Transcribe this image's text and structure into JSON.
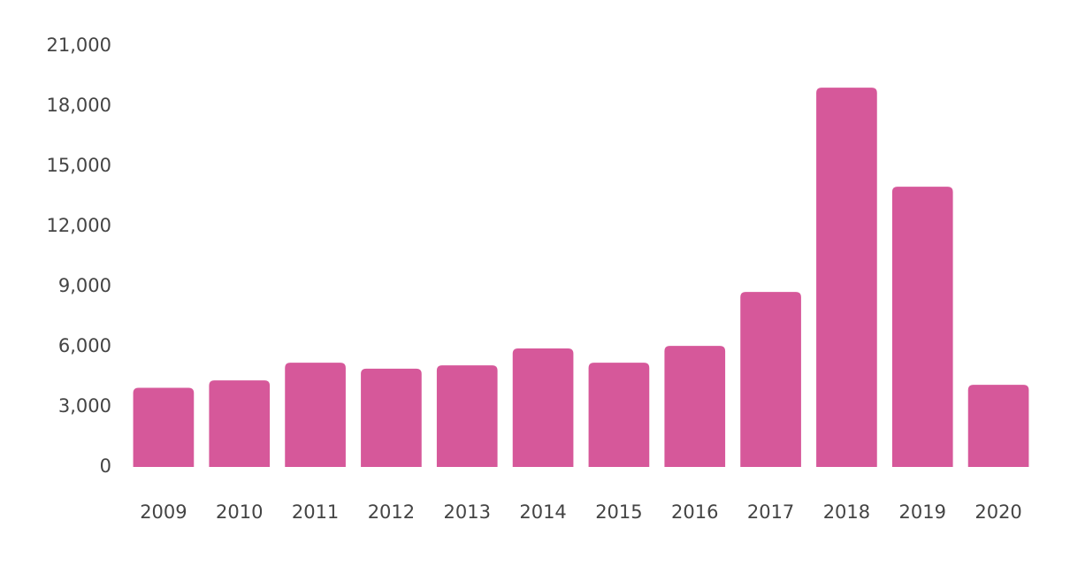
{
  "chart_data": {
    "type": "bar",
    "categories": [
      "2009",
      "2010",
      "2011",
      "2012",
      "2013",
      "2014",
      "2015",
      "2016",
      "2017",
      "2018",
      "2019",
      "2020"
    ],
    "values": [
      3950,
      4320,
      5200,
      4900,
      5070,
      5910,
      5200,
      6040,
      8730,
      18920,
      13980,
      4100
    ],
    "color": "#d6589a",
    "ylim": [
      0,
      21000
    ],
    "yticks": [
      0,
      {
        "value": 3000,
        "label": "3,000"
      },
      {
        "value": 6000,
        "label": "6,000"
      },
      {
        "value": 9000,
        "label": "9,000"
      },
      {
        "value": 12000,
        "label": "12,000"
      },
      {
        "value": 15000,
        "label": "15,000"
      },
      {
        "value": 18000,
        "label": "18,000"
      },
      {
        "value": 21000,
        "label": "21,000"
      }
    ],
    "grid": false
  }
}
